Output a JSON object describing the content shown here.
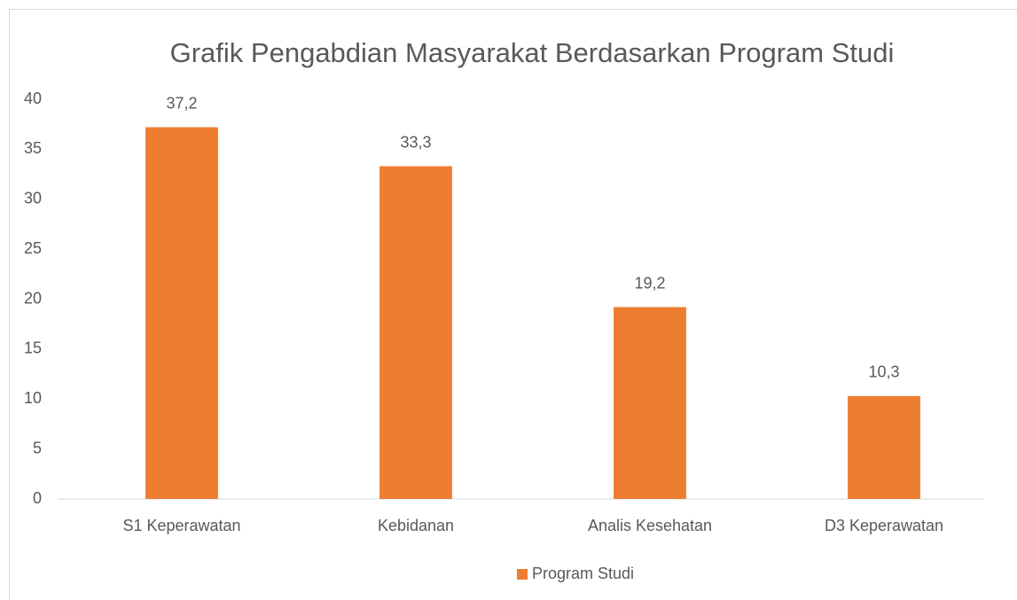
{
  "chart_data": {
    "type": "bar",
    "title": "Grafik Pengabdian Masyarakat Berdasarkan Program Studi",
    "categories": [
      "S1 Keperawatan",
      "Kebidanan",
      "Analis Kesehatan",
      "D3 Keperawatan"
    ],
    "series": [
      {
        "name": "Program Studi",
        "color": "#ed7d31",
        "values": [
          37.2,
          33.3,
          19.2,
          10.3
        ],
        "value_labels": [
          "37,2",
          "33,3",
          "19,2",
          "10,3"
        ]
      }
    ],
    "ylim": [
      0,
      40
    ],
    "yticks": [
      0,
      5,
      10,
      15,
      20,
      25,
      30,
      35,
      40
    ],
    "grid": false,
    "legend": "bottom"
  }
}
